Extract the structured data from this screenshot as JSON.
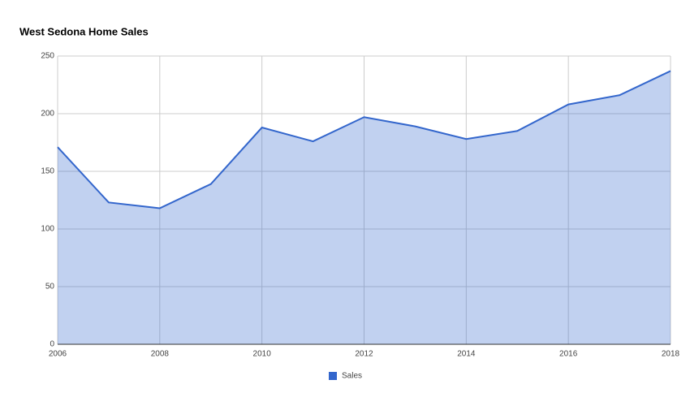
{
  "chart_data": {
    "type": "area",
    "title": "West Sedona Home Sales",
    "x": [
      2006,
      2007,
      2008,
      2009,
      2010,
      2011,
      2012,
      2013,
      2014,
      2015,
      2016,
      2017,
      2018
    ],
    "series": [
      {
        "name": "Sales",
        "color": "#3366cc",
        "values": [
          171,
          123,
          118,
          139,
          188,
          176,
          197,
          189,
          178,
          185,
          208,
          216,
          237
        ]
      }
    ],
    "xlim": [
      2006,
      2018
    ],
    "xticks": [
      2006,
      2008,
      2010,
      2012,
      2014,
      2016,
      2018
    ],
    "ylim": [
      0,
      250
    ],
    "yticks": [
      0,
      50,
      100,
      150,
      200,
      250
    ],
    "grid": true,
    "legend": "bottom"
  }
}
